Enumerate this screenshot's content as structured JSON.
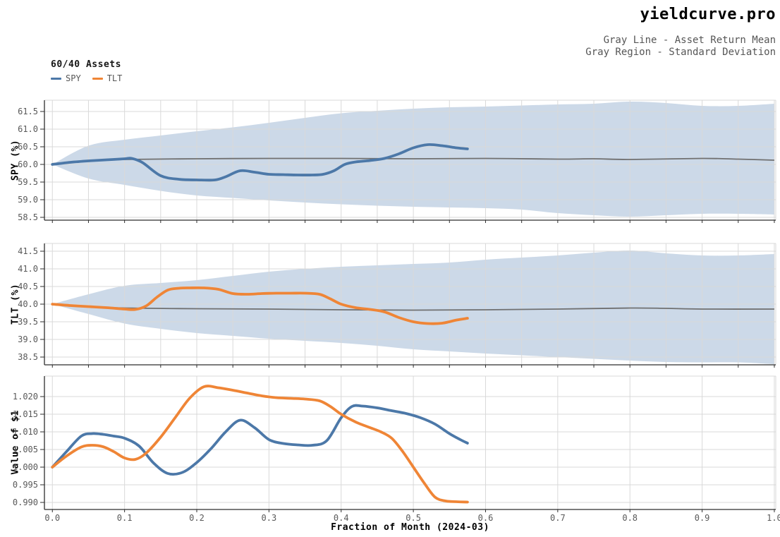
{
  "header": {
    "title": "yieldcurve.pro",
    "subtitle_line1": "Gray Line - Asset Return Mean",
    "subtitle_line2": "Gray Region - Standard Deviation"
  },
  "legend": {
    "title": "60/40 Assets",
    "items": [
      {
        "label": "SPY",
        "color": "#4c78a8"
      },
      {
        "label": "TLT",
        "color": "#ef8536"
      }
    ]
  },
  "colors": {
    "spy": "#4c78a8",
    "tlt": "#ef8536",
    "band": "#ccd9e8",
    "mean_line": "#707070",
    "grid": "#d9d9d9",
    "spine": "#2e2e2e",
    "tick_text": "#595959"
  },
  "x_axis": {
    "label": "Fraction of Month (2024-03)",
    "lim": [
      -0.011,
      1.002
    ],
    "ticks": [
      {
        "v": 0.0,
        "label": "0.0"
      },
      {
        "v": 0.1,
        "label": "0.1"
      },
      {
        "v": 0.2,
        "label": "0.2"
      },
      {
        "v": 0.3,
        "label": "0.3"
      },
      {
        "v": 0.4,
        "label": "0.4"
      },
      {
        "v": 0.5,
        "label": "0.5"
      },
      {
        "v": 0.6,
        "label": "0.6"
      },
      {
        "v": 0.7,
        "label": "0.7"
      },
      {
        "v": 0.8,
        "label": "0.8"
      },
      {
        "v": 0.9,
        "label": "0.9"
      },
      {
        "v": 1.0,
        "label": "1.0"
      }
    ]
  },
  "chart_data": [
    {
      "type": "line",
      "name": "spy-return",
      "ylabel": "SPY (%)",
      "xlabel": "",
      "ylim": [
        58.42,
        61.82
      ],
      "grid_x_step": 0.05,
      "show_x_tick_labels": false,
      "yticks": [
        {
          "v": 58.5,
          "label": "58.5"
        },
        {
          "v": 59.0,
          "label": "59.0"
        },
        {
          "v": 59.5,
          "label": "59.5"
        },
        {
          "v": 60.0,
          "label": "60.0"
        },
        {
          "v": 60.5,
          "label": "60.5"
        },
        {
          "v": 61.0,
          "label": "61.0"
        },
        {
          "v": 61.5,
          "label": "61.5"
        }
      ],
      "band": {
        "color": "#ccd9e8",
        "x": [
          0.0,
          0.05,
          0.1,
          0.15,
          0.2,
          0.25,
          0.3,
          0.35,
          0.4,
          0.45,
          0.5,
          0.55,
          0.6,
          0.65,
          0.7,
          0.75,
          0.8,
          0.85,
          0.9,
          0.95,
          1.0
        ],
        "upper": [
          60.0,
          60.53,
          60.7,
          60.82,
          60.94,
          61.05,
          61.18,
          61.32,
          61.45,
          61.52,
          61.58,
          61.62,
          61.64,
          61.67,
          61.7,
          61.72,
          61.78,
          61.74,
          61.66,
          61.66,
          61.72
        ],
        "lower": [
          60.0,
          59.6,
          59.42,
          59.25,
          59.12,
          59.05,
          58.98,
          58.92,
          58.87,
          58.83,
          58.8,
          58.78,
          58.76,
          58.72,
          58.62,
          58.56,
          58.52,
          58.56,
          58.6,
          58.6,
          58.58
        ]
      },
      "mean": {
        "color": "#707070",
        "x": [
          0.0,
          0.05,
          0.1,
          0.2,
          0.3,
          0.4,
          0.5,
          0.6,
          0.7,
          0.75,
          0.8,
          0.9,
          0.95,
          1.0
        ],
        "y": [
          60.02,
          60.1,
          60.14,
          60.16,
          60.17,
          60.17,
          60.16,
          60.17,
          60.15,
          60.16,
          60.14,
          60.17,
          60.15,
          60.12
        ]
      },
      "series": [
        {
          "name": "SPY",
          "color": "#4c78a8",
          "x": [
            0.0,
            0.025,
            0.05,
            0.075,
            0.1,
            0.11,
            0.125,
            0.15,
            0.175,
            0.2,
            0.225,
            0.24,
            0.26,
            0.28,
            0.3,
            0.32,
            0.34,
            0.36,
            0.375,
            0.39,
            0.405,
            0.42,
            0.44,
            0.46,
            0.48,
            0.5,
            0.52,
            0.54,
            0.56,
            0.575
          ],
          "y": [
            60.0,
            60.06,
            60.1,
            60.13,
            60.16,
            60.17,
            60.05,
            59.68,
            59.58,
            59.56,
            59.56,
            59.65,
            59.82,
            59.78,
            59.72,
            59.71,
            59.7,
            59.7,
            59.72,
            59.82,
            60.0,
            60.07,
            60.11,
            60.17,
            60.3,
            60.47,
            60.56,
            60.53,
            60.47,
            60.44
          ]
        }
      ]
    },
    {
      "type": "line",
      "name": "tlt-return",
      "ylabel": "TLT (%)",
      "xlabel": "",
      "ylim": [
        38.28,
        41.72
      ],
      "grid_x_step": 0.05,
      "show_x_tick_labels": false,
      "yticks": [
        {
          "v": 38.5,
          "label": "38.5"
        },
        {
          "v": 39.0,
          "label": "39.0"
        },
        {
          "v": 39.5,
          "label": "39.5"
        },
        {
          "v": 40.0,
          "label": "40.0"
        },
        {
          "v": 40.5,
          "label": "40.5"
        },
        {
          "v": 41.0,
          "label": "41.0"
        },
        {
          "v": 41.5,
          "label": "41.5"
        }
      ],
      "band": {
        "color": "#ccd9e8",
        "x": [
          0.0,
          0.05,
          0.1,
          0.15,
          0.2,
          0.25,
          0.3,
          0.35,
          0.4,
          0.45,
          0.5,
          0.55,
          0.6,
          0.65,
          0.7,
          0.75,
          0.8,
          0.85,
          0.9,
          0.95,
          1.0
        ],
        "upper": [
          40.0,
          40.28,
          40.52,
          40.6,
          40.68,
          40.8,
          40.92,
          41.0,
          41.06,
          41.1,
          41.14,
          41.18,
          41.26,
          41.32,
          41.38,
          41.46,
          41.52,
          41.44,
          41.38,
          41.38,
          41.42
        ],
        "lower": [
          40.0,
          39.72,
          39.45,
          39.3,
          39.18,
          39.1,
          39.02,
          38.96,
          38.9,
          38.82,
          38.72,
          38.66,
          38.6,
          38.55,
          38.5,
          38.45,
          38.4,
          38.36,
          38.35,
          38.35,
          38.3
        ]
      },
      "mean": {
        "color": "#707070",
        "x": [
          0.0,
          0.05,
          0.1,
          0.2,
          0.3,
          0.4,
          0.5,
          0.6,
          0.7,
          0.8,
          0.85,
          0.9,
          1.0
        ],
        "y": [
          39.98,
          39.93,
          39.89,
          39.87,
          39.86,
          39.84,
          39.83,
          39.84,
          39.86,
          39.89,
          39.88,
          39.86,
          39.86
        ]
      },
      "series": [
        {
          "name": "TLT",
          "color": "#ef8536",
          "x": [
            0.0,
            0.025,
            0.05,
            0.075,
            0.1,
            0.115,
            0.13,
            0.145,
            0.16,
            0.175,
            0.19,
            0.21,
            0.23,
            0.25,
            0.27,
            0.29,
            0.31,
            0.33,
            0.35,
            0.37,
            0.385,
            0.4,
            0.42,
            0.44,
            0.46,
            0.48,
            0.5,
            0.52,
            0.54,
            0.56,
            0.575
          ],
          "y": [
            40.0,
            39.96,
            39.93,
            39.9,
            39.86,
            39.85,
            39.95,
            40.2,
            40.4,
            40.45,
            40.46,
            40.46,
            40.42,
            40.3,
            40.28,
            40.3,
            40.31,
            40.31,
            40.31,
            40.28,
            40.15,
            40.0,
            39.9,
            39.85,
            39.78,
            39.62,
            39.5,
            39.45,
            39.46,
            39.55,
            39.6
          ]
        }
      ]
    },
    {
      "type": "line",
      "name": "value-of-1",
      "ylabel": "Value of $1",
      "xlabel": "Fraction of Month (2024-03)",
      "ylim": [
        0.988,
        1.0258
      ],
      "grid_x_step": 0.1,
      "show_x_tick_labels": true,
      "yticks": [
        {
          "v": 0.99,
          "label": "0.990"
        },
        {
          "v": 0.995,
          "label": "0.995"
        },
        {
          "v": 1.0,
          "label": "1.000"
        },
        {
          "v": 1.005,
          "label": "1.005"
        },
        {
          "v": 1.01,
          "label": "1.010"
        },
        {
          "v": 1.015,
          "label": "1.015"
        },
        {
          "v": 1.02,
          "label": "1.020"
        }
      ],
      "series": [
        {
          "name": "SPY",
          "color": "#4c78a8",
          "x": [
            0.0,
            0.02,
            0.04,
            0.055,
            0.07,
            0.085,
            0.1,
            0.12,
            0.14,
            0.16,
            0.18,
            0.2,
            0.22,
            0.24,
            0.26,
            0.28,
            0.3,
            0.32,
            0.34,
            0.36,
            0.38,
            0.4,
            0.415,
            0.43,
            0.45,
            0.47,
            0.49,
            0.51,
            0.53,
            0.55,
            0.565,
            0.575
          ],
          "y": [
            1.0,
            1.0045,
            1.0088,
            1.0095,
            1.0093,
            1.0088,
            1.0082,
            1.006,
            1.0012,
            0.9982,
            0.9985,
            1.0013,
            1.0053,
            1.01,
            1.0133,
            1.0112,
            1.0078,
            1.0067,
            1.0063,
            1.0062,
            1.0075,
            1.014,
            1.0172,
            1.0173,
            1.0168,
            1.016,
            1.0152,
            1.014,
            1.0122,
            1.0095,
            1.0078,
            1.0068
          ]
        },
        {
          "name": "TLT",
          "color": "#ef8536",
          "x": [
            0.0,
            0.02,
            0.04,
            0.055,
            0.07,
            0.085,
            0.1,
            0.115,
            0.13,
            0.15,
            0.17,
            0.19,
            0.21,
            0.23,
            0.25,
            0.27,
            0.29,
            0.31,
            0.33,
            0.35,
            0.37,
            0.385,
            0.4,
            0.42,
            0.44,
            0.455,
            0.47,
            0.485,
            0.5,
            0.515,
            0.53,
            0.545,
            0.56,
            0.575
          ],
          "y": [
            1.0,
            1.0032,
            1.0057,
            1.0062,
            1.0058,
            1.0044,
            1.0026,
            1.0022,
            1.004,
            1.0085,
            1.014,
            1.0195,
            1.0228,
            1.0225,
            1.0218,
            1.021,
            1.0202,
            1.0197,
            1.0195,
            1.0193,
            1.0188,
            1.0172,
            1.015,
            1.0128,
            1.0112,
            1.01,
            1.0082,
            1.0045,
            1.0,
            0.9955,
            0.9915,
            0.9904,
            0.9902,
            0.9901
          ]
        }
      ]
    }
  ]
}
